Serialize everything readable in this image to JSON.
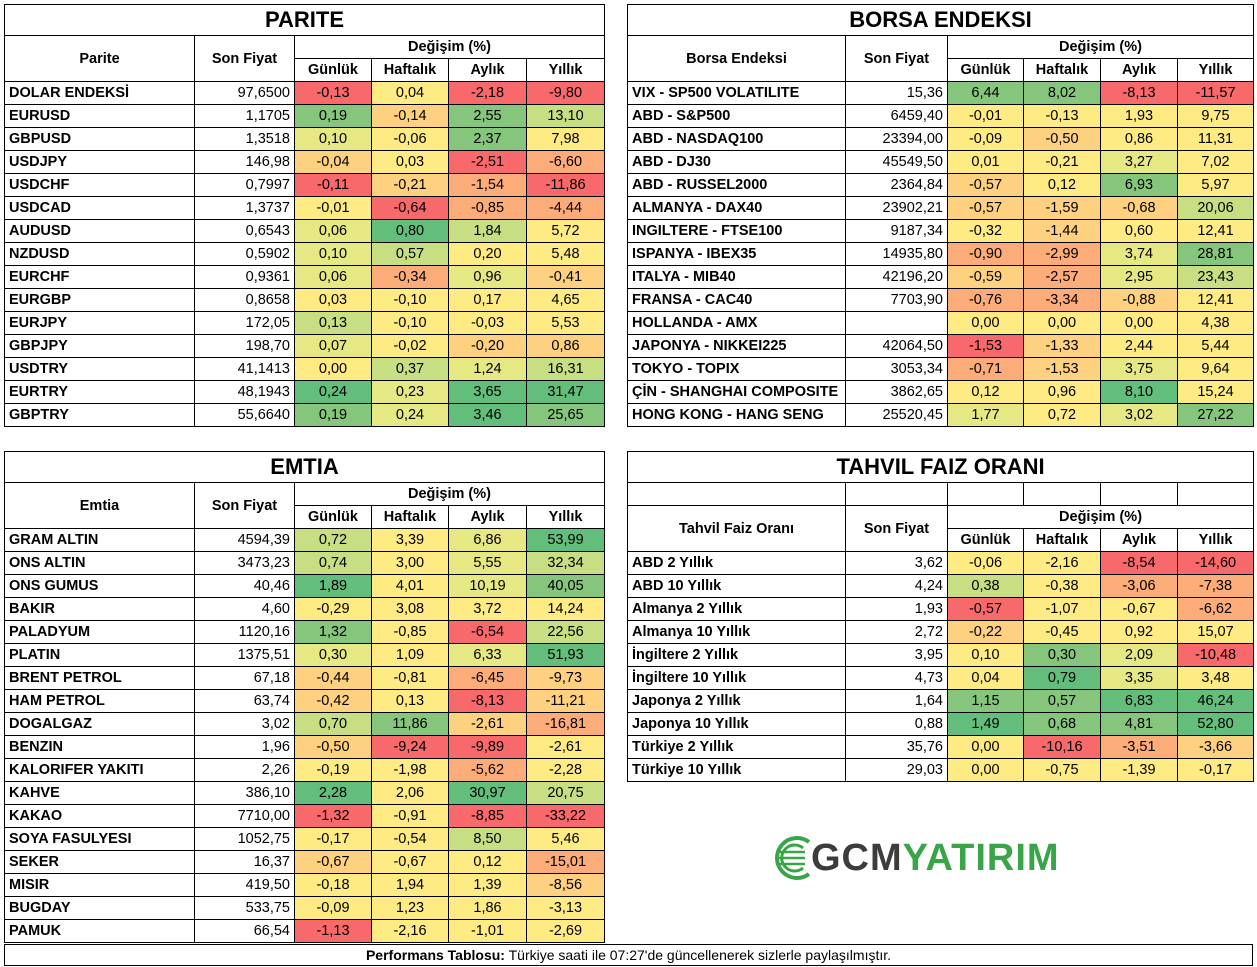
{
  "colors": {
    "red": "#f8696b",
    "orange": "#fcac78",
    "yellow": "#ffeb84",
    "lightgreen": "#c7de82",
    "green": "#86c67c",
    "darkgreen": "#63be7b",
    "paleorange": "#fdd17f",
    "palegreen": "#e6e883"
  },
  "headers": {
    "change": "Değişim (%)",
    "daily": "Günlük",
    "weekly": "Haftalık",
    "monthly": "Aylık",
    "yearly": "Yıllık",
    "last_price": "Son Fiyat"
  },
  "parite": {
    "title": "PARITE",
    "col": "Parite",
    "rows": [
      {
        "name": "DOLAR ENDEKSİ",
        "price": "97,6500",
        "d": "-0,13",
        "w": "0,04",
        "m": "-2,18",
        "y": "-9,80",
        "c": [
          "red",
          "yellow",
          "red",
          "red"
        ]
      },
      {
        "name": "EURUSD",
        "price": "1,1705",
        "d": "0,19",
        "w": "-0,14",
        "m": "2,55",
        "y": "13,10",
        "c": [
          "green",
          "paleorange",
          "green",
          "lightgreen"
        ]
      },
      {
        "name": "GBPUSD",
        "price": "1,3518",
        "d": "0,10",
        "w": "-0,06",
        "m": "2,37",
        "y": "7,98",
        "c": [
          "palegreen",
          "yellow",
          "green",
          "yellow"
        ]
      },
      {
        "name": "USDJPY",
        "price": "146,98",
        "d": "-0,04",
        "w": "0,03",
        "m": "-2,51",
        "y": "-6,60",
        "c": [
          "paleorange",
          "yellow",
          "red",
          "orange"
        ]
      },
      {
        "name": "USDCHF",
        "price": "0,7997",
        "d": "-0,11",
        "w": "-0,21",
        "m": "-1,54",
        "y": "-11,86",
        "c": [
          "red",
          "paleorange",
          "orange",
          "red"
        ]
      },
      {
        "name": "USDCAD",
        "price": "1,3737",
        "d": "-0,01",
        "w": "-0,64",
        "m": "-0,85",
        "y": "-4,44",
        "c": [
          "yellow",
          "red",
          "orange",
          "orange"
        ]
      },
      {
        "name": "AUDUSD",
        "price": "0,6543",
        "d": "0,06",
        "w": "0,80",
        "m": "1,84",
        "y": "5,72",
        "c": [
          "palegreen",
          "darkgreen",
          "lightgreen",
          "yellow"
        ]
      },
      {
        "name": "NZDUSD",
        "price": "0,5902",
        "d": "0,10",
        "w": "0,57",
        "m": "0,20",
        "y": "5,48",
        "c": [
          "palegreen",
          "lightgreen",
          "yellow",
          "yellow"
        ]
      },
      {
        "name": "EURCHF",
        "price": "0,9361",
        "d": "0,06",
        "w": "-0,34",
        "m": "0,96",
        "y": "-0,41",
        "c": [
          "palegreen",
          "orange",
          "palegreen",
          "paleorange"
        ]
      },
      {
        "name": "EURGBP",
        "price": "0,8658",
        "d": "0,03",
        "w": "-0,10",
        "m": "0,17",
        "y": "4,65",
        "c": [
          "yellow",
          "yellow",
          "yellow",
          "yellow"
        ]
      },
      {
        "name": "EURJPY",
        "price": "172,05",
        "d": "0,13",
        "w": "-0,10",
        "m": "-0,03",
        "y": "5,53",
        "c": [
          "lightgreen",
          "yellow",
          "yellow",
          "yellow"
        ]
      },
      {
        "name": "GBPJPY",
        "price": "198,70",
        "d": "0,07",
        "w": "-0,02",
        "m": "-0,20",
        "y": "0,86",
        "c": [
          "palegreen",
          "yellow",
          "paleorange",
          "paleorange"
        ]
      },
      {
        "name": "USDTRY",
        "price": "41,1413",
        "d": "0,00",
        "w": "0,37",
        "m": "1,24",
        "y": "16,31",
        "c": [
          "yellow",
          "lightgreen",
          "palegreen",
          "lightgreen"
        ]
      },
      {
        "name": "EURTRY",
        "price": "48,1943",
        "d": "0,24",
        "w": "0,23",
        "m": "3,65",
        "y": "31,47",
        "c": [
          "darkgreen",
          "palegreen",
          "darkgreen",
          "darkgreen"
        ]
      },
      {
        "name": "GBPTRY",
        "price": "55,6640",
        "d": "0,19",
        "w": "0,24",
        "m": "3,46",
        "y": "25,65",
        "c": [
          "green",
          "palegreen",
          "darkgreen",
          "green"
        ]
      }
    ]
  },
  "borsa": {
    "title": "BORSA ENDEKSI",
    "col": "Borsa Endeksi",
    "rows": [
      {
        "name": "VIX  - SP500 VOLATILITE",
        "price": "15,36",
        "d": "6,44",
        "w": "8,02",
        "m": "-8,13",
        "y": "-11,57",
        "c": [
          "green",
          "green",
          "red",
          "red"
        ]
      },
      {
        "name": "ABD - S&P500",
        "price": "6459,40",
        "d": "-0,01",
        "w": "-0,13",
        "m": "1,93",
        "y": "9,75",
        "c": [
          "yellow",
          "yellow",
          "yellow",
          "yellow"
        ]
      },
      {
        "name": "ABD - NASDAQ100",
        "price": "23394,00",
        "d": "-0,09",
        "w": "-0,50",
        "m": "0,86",
        "y": "11,31",
        "c": [
          "yellow",
          "paleorange",
          "yellow",
          "yellow"
        ]
      },
      {
        "name": "ABD - DJ30",
        "price": "45549,50",
        "d": "0,01",
        "w": "-0,21",
        "m": "3,27",
        "y": "7,02",
        "c": [
          "yellow",
          "yellow",
          "palegreen",
          "yellow"
        ]
      },
      {
        "name": "ABD - RUSSEL2000",
        "price": "2364,84",
        "d": "-0,57",
        "w": "0,12",
        "m": "6,93",
        "y": "5,97",
        "c": [
          "paleorange",
          "yellow",
          "green",
          "yellow"
        ]
      },
      {
        "name": "ALMANYA - DAX40",
        "price": "23902,21",
        "d": "-0,57",
        "w": "-1,59",
        "m": "-0,68",
        "y": "20,06",
        "c": [
          "paleorange",
          "paleorange",
          "paleorange",
          "lightgreen"
        ]
      },
      {
        "name": "INGILTERE - FTSE100",
        "price": "9187,34",
        "d": "-0,32",
        "w": "-1,44",
        "m": "0,60",
        "y": "12,41",
        "c": [
          "yellow",
          "paleorange",
          "yellow",
          "yellow"
        ]
      },
      {
        "name": "ISPANYA - IBEX35",
        "price": "14935,80",
        "d": "-0,90",
        "w": "-2,99",
        "m": "3,74",
        "y": "28,81",
        "c": [
          "orange",
          "orange",
          "palegreen",
          "green"
        ]
      },
      {
        "name": "ITALYA - MIB40",
        "price": "42196,20",
        "d": "-0,59",
        "w": "-2,57",
        "m": "2,95",
        "y": "23,43",
        "c": [
          "paleorange",
          "orange",
          "palegreen",
          "lightgreen"
        ]
      },
      {
        "name": "FRANSA - CAC40",
        "price": "7703,90",
        "d": "-0,76",
        "w": "-3,34",
        "m": "-0,88",
        "y": "12,41",
        "c": [
          "orange",
          "orange",
          "paleorange",
          "yellow"
        ]
      },
      {
        "name": "HOLLANDA - AMX",
        "price": "",
        "d": "0,00",
        "w": "0,00",
        "m": "0,00",
        "y": "4,38",
        "c": [
          "yellow",
          "yellow",
          "yellow",
          "yellow"
        ]
      },
      {
        "name": "JAPONYA - NIKKEI225",
        "price": "42064,50",
        "d": "-1,53",
        "w": "-1,33",
        "m": "2,44",
        "y": "5,44",
        "c": [
          "red",
          "paleorange",
          "yellow",
          "yellow"
        ]
      },
      {
        "name": "TOKYO - TOPIX",
        "price": "3053,34",
        "d": "-0,71",
        "w": "-1,53",
        "m": "3,75",
        "y": "9,64",
        "c": [
          "orange",
          "paleorange",
          "palegreen",
          "yellow"
        ]
      },
      {
        "name": "ÇİN - SHANGHAI COMPOSITE",
        "price": "3862,65",
        "d": "0,12",
        "w": "0,96",
        "m": "8,10",
        "y": "15,24",
        "c": [
          "yellow",
          "yellow",
          "darkgreen",
          "yellow"
        ]
      },
      {
        "name": "HONG KONG - HANG SENG",
        "price": "25520,45",
        "d": "1,77",
        "w": "0,72",
        "m": "3,02",
        "y": "27,22",
        "c": [
          "palegreen",
          "yellow",
          "palegreen",
          "green"
        ]
      }
    ]
  },
  "emtia": {
    "title": "EMTIA",
    "col": "Emtia",
    "rows": [
      {
        "name": "GRAM ALTIN",
        "price": "4594,39",
        "d": "0,72",
        "w": "3,39",
        "m": "6,86",
        "y": "53,99",
        "c": [
          "lightgreen",
          "yellow",
          "palegreen",
          "darkgreen"
        ]
      },
      {
        "name": "ONS ALTIN",
        "price": "3473,23",
        "d": "0,74",
        "w": "3,00",
        "m": "5,55",
        "y": "32,34",
        "c": [
          "lightgreen",
          "yellow",
          "palegreen",
          "lightgreen"
        ]
      },
      {
        "name": "ONS GUMUS",
        "price": "40,46",
        "d": "1,89",
        "w": "4,01",
        "m": "10,19",
        "y": "40,05",
        "c": [
          "darkgreen",
          "yellow",
          "palegreen",
          "green"
        ]
      },
      {
        "name": "BAKIR",
        "price": "4,60",
        "d": "-0,29",
        "w": "3,08",
        "m": "3,72",
        "y": "14,24",
        "c": [
          "yellow",
          "yellow",
          "yellow",
          "yellow"
        ]
      },
      {
        "name": "PALADYUM",
        "price": "1120,16",
        "d": "1,32",
        "w": "-0,85",
        "m": "-6,54",
        "y": "22,56",
        "c": [
          "green",
          "yellow",
          "red",
          "lightgreen"
        ]
      },
      {
        "name": "PLATIN",
        "price": "1375,51",
        "d": "0,30",
        "w": "1,09",
        "m": "6,33",
        "y": "51,93",
        "c": [
          "palegreen",
          "yellow",
          "palegreen",
          "darkgreen"
        ]
      },
      {
        "name": "BRENT PETROL",
        "price": "67,18",
        "d": "-0,44",
        "w": "-0,81",
        "m": "-6,45",
        "y": "-9,73",
        "c": [
          "paleorange",
          "yellow",
          "orange",
          "paleorange"
        ]
      },
      {
        "name": "HAM PETROL",
        "price": "63,74",
        "d": "-0,42",
        "w": "0,13",
        "m": "-8,13",
        "y": "-11,21",
        "c": [
          "paleorange",
          "yellow",
          "red",
          "paleorange"
        ]
      },
      {
        "name": "DOGALGAZ",
        "price": "3,02",
        "d": "0,70",
        "w": "11,86",
        "m": "-2,61",
        "y": "-16,81",
        "c": [
          "lightgreen",
          "green",
          "paleorange",
          "orange"
        ]
      },
      {
        "name": "BENZIN",
        "price": "1,96",
        "d": "-0,50",
        "w": "-9,24",
        "m": "-9,89",
        "y": "-2,61",
        "c": [
          "paleorange",
          "red",
          "red",
          "yellow"
        ]
      },
      {
        "name": "KALORIFER YAKITI",
        "price": "2,26",
        "d": "-0,19",
        "w": "-1,98",
        "m": "-5,62",
        "y": "-2,28",
        "c": [
          "yellow",
          "yellow",
          "orange",
          "yellow"
        ]
      },
      {
        "name": "KAHVE",
        "price": "386,10",
        "d": "2,28",
        "w": "2,06",
        "m": "30,97",
        "y": "20,75",
        "c": [
          "darkgreen",
          "yellow",
          "darkgreen",
          "lightgreen"
        ]
      },
      {
        "name": "KAKAO",
        "price": "7710,00",
        "d": "-1,32",
        "w": "-0,91",
        "m": "-8,85",
        "y": "-33,22",
        "c": [
          "red",
          "yellow",
          "red",
          "red"
        ]
      },
      {
        "name": "SOYA FASULYESI",
        "price": "1052,75",
        "d": "-0,17",
        "w": "-0,54",
        "m": "8,50",
        "y": "5,46",
        "c": [
          "yellow",
          "yellow",
          "lightgreen",
          "yellow"
        ]
      },
      {
        "name": "SEKER",
        "price": "16,37",
        "d": "-0,67",
        "w": "-0,67",
        "m": "0,12",
        "y": "-15,01",
        "c": [
          "paleorange",
          "yellow",
          "yellow",
          "orange"
        ]
      },
      {
        "name": "MISIR",
        "price": "419,50",
        "d": "-0,18",
        "w": "1,94",
        "m": "1,39",
        "y": "-8,56",
        "c": [
          "yellow",
          "yellow",
          "yellow",
          "paleorange"
        ]
      },
      {
        "name": "BUGDAY",
        "price": "533,75",
        "d": "-0,09",
        "w": "1,23",
        "m": "1,86",
        "y": "-3,13",
        "c": [
          "yellow",
          "yellow",
          "yellow",
          "yellow"
        ]
      },
      {
        "name": "PAMUK",
        "price": "66,54",
        "d": "-1,13",
        "w": "-2,16",
        "m": "-1,01",
        "y": "-2,69",
        "c": [
          "red",
          "yellow",
          "yellow",
          "yellow"
        ]
      }
    ]
  },
  "tahvil": {
    "title": "TAHVIL FAIZ ORANI",
    "col": "Tahvil Faiz Oranı",
    "rows": [
      {
        "name": "ABD 2 Yıllık",
        "price": "3,62",
        "d": "-0,06",
        "w": "-2,16",
        "m": "-8,54",
        "y": "-14,60",
        "c": [
          "yellow",
          "yellow",
          "red",
          "red"
        ]
      },
      {
        "name": "ABD 10 Yıllık",
        "price": "4,24",
        "d": "0,38",
        "w": "-0,38",
        "m": "-3,06",
        "y": "-7,38",
        "c": [
          "lightgreen",
          "yellow",
          "orange",
          "orange"
        ]
      },
      {
        "name": "Almanya 2 Yıllık",
        "price": "1,93",
        "d": "-0,57",
        "w": "-1,07",
        "m": "-0,67",
        "y": "-6,62",
        "c": [
          "red",
          "yellow",
          "yellow",
          "orange"
        ]
      },
      {
        "name": "Almanya 10 Yıllık",
        "price": "2,72",
        "d": "-0,22",
        "w": "-0,45",
        "m": "0,92",
        "y": "15,07",
        "c": [
          "paleorange",
          "yellow",
          "yellow",
          "yellow"
        ]
      },
      {
        "name": "İngiltere 2 Yıllık",
        "price": "3,95",
        "d": "0,10",
        "w": "0,30",
        "m": "2,09",
        "y": "-10,48",
        "c": [
          "yellow",
          "green",
          "palegreen",
          "red"
        ]
      },
      {
        "name": "İngiltere 10 Yıllık",
        "price": "4,73",
        "d": "0,04",
        "w": "0,79",
        "m": "3,35",
        "y": "3,48",
        "c": [
          "yellow",
          "darkgreen",
          "palegreen",
          "yellow"
        ]
      },
      {
        "name": "Japonya 2 Yıllık",
        "price": "1,64",
        "d": "1,15",
        "w": "0,57",
        "m": "6,83",
        "y": "46,24",
        "c": [
          "green",
          "green",
          "darkgreen",
          "darkgreen"
        ]
      },
      {
        "name": "Japonya 10 Yıllık",
        "price": "0,88",
        "d": "1,49",
        "w": "0,68",
        "m": "4,81",
        "y": "52,80",
        "c": [
          "darkgreen",
          "green",
          "green",
          "darkgreen"
        ]
      },
      {
        "name": "Türkiye 2 Yıllık",
        "price": "35,76",
        "d": "0,00",
        "w": "-10,16",
        "m": "-3,51",
        "y": "-3,66",
        "c": [
          "yellow",
          "red",
          "orange",
          "paleorange"
        ]
      },
      {
        "name": "Türkiye 10 Yıllık",
        "price": "29,03",
        "d": "0,00",
        "w": "-0,75",
        "m": "-1,39",
        "y": "-0,17",
        "c": [
          "yellow",
          "yellow",
          "yellow",
          "yellow"
        ]
      }
    ]
  },
  "footer": {
    "bold": "Performans Tablosu:",
    "text": " Türkiye saati ile 07:27'de güncellenerek sizlerle paylaşılmıştır."
  },
  "logo": {
    "part1": "GCM",
    "part2": "YATIRIM",
    "icon": "gcm-globe-icon"
  }
}
